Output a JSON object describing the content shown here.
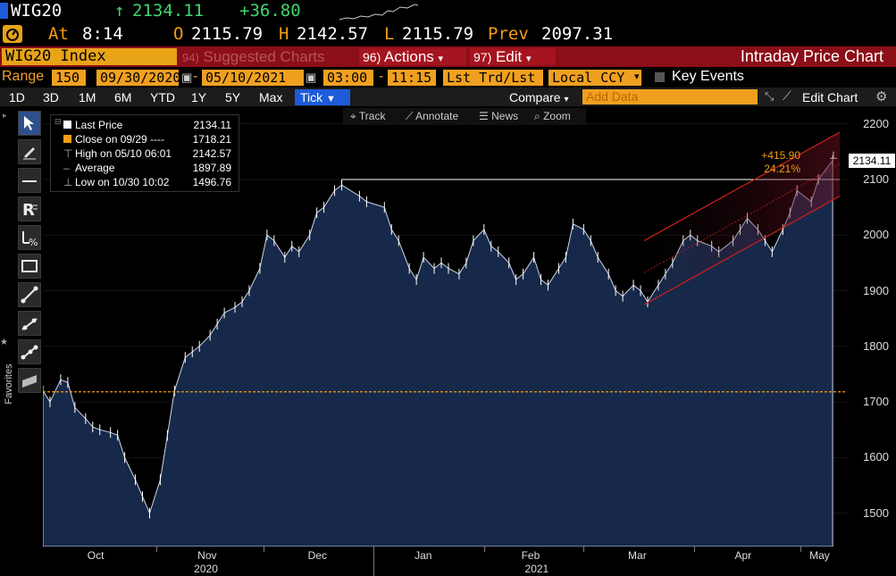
{
  "colors": {
    "accent": "#f39c12",
    "red_bar": "#8b0e18",
    "green": "#41d66e",
    "selected": "#1d5bd8",
    "area": "#17294a",
    "channel": "#d0201a"
  },
  "header": {
    "ticker": "WIG20",
    "last_price": "2134.11",
    "change": "+36.80",
    "at_label": "At",
    "time": "8:14",
    "open_label": "O",
    "open": "2115.79",
    "high_label": "H",
    "high": "2142.57",
    "low_label": "L",
    "low": "2115.79",
    "prev_label": "Prev",
    "prev": "2097.31"
  },
  "menu_bar": {
    "security": "WIG20 Index",
    "suggested_num": "94)",
    "suggested": "Suggested Charts",
    "actions_num": "96)",
    "actions": "Actions",
    "edit_num": "97)",
    "edit": "Edit",
    "chart_title": "Intraday Price Chart"
  },
  "range_bar": {
    "range_label": "Range",
    "bars": "150",
    "start_date": "09/30/2020",
    "end_date": "05/10/2021",
    "start_time": "03:00",
    "end_time": "11:15",
    "field": "Lst Trd/Lst P",
    "currency": "Local CCY",
    "key_events": "Key Events"
  },
  "period_bar": {
    "periods": [
      "1D",
      "3D",
      "1M",
      "6M",
      "YTD",
      "1Y",
      "5Y",
      "Max"
    ],
    "selected": "Tick",
    "compare": "Compare",
    "add_data_placeholder": "Add Data",
    "edit_chart": "Edit Chart"
  },
  "chart_tools": {
    "track": "Track",
    "annotate": "Annotate",
    "news": "News",
    "zoom": "Zoom"
  },
  "favorites_label": "Favorites",
  "legend": {
    "last_price_label": "Last Price",
    "last_price": "2134.11",
    "close_label": "Close on 09/29 ----",
    "close": "1718.21",
    "high_label": "High on 05/10 06:01",
    "high": "2142.57",
    "average_label": "Average",
    "average": "1897.89",
    "low_label": "Low on 10/30 10:02",
    "low": "1496.76"
  },
  "annotations": {
    "last_tag": "2134.11",
    "change_abs": "+415.90",
    "change_pct": "24.21%"
  },
  "chart_data": {
    "type": "area",
    "title": "",
    "y_ticks": [
      1500,
      1600,
      1700,
      1800,
      1900,
      2000,
      2100,
      2200
    ],
    "ylim": [
      1440,
      2230
    ],
    "x_month_labels": [
      "Oct",
      "Nov",
      "Dec",
      "Jan",
      "Feb",
      "Mar",
      "Apr",
      "May"
    ],
    "x_year_labels": [
      "2020",
      "2021"
    ],
    "reference_line_close": 1718.21,
    "resistance_line": 2100,
    "series": [
      {
        "x": [
          "2020-09-30",
          "2020-10-02",
          "2020-10-05",
          "2020-10-07",
          "2020-10-09",
          "2020-10-12",
          "2020-10-14",
          "2020-10-16",
          "2020-10-19",
          "2020-10-21",
          "2020-10-23",
          "2020-10-26",
          "2020-10-28",
          "2020-10-30",
          "2020-11-02",
          "2020-11-04",
          "2020-11-06",
          "2020-11-09",
          "2020-11-11",
          "2020-11-13",
          "2020-11-16",
          "2020-11-18",
          "2020-11-20",
          "2020-11-23",
          "2020-11-25",
          "2020-11-27",
          "2020-11-30",
          "2020-12-02",
          "2020-12-04",
          "2020-12-07",
          "2020-12-09",
          "2020-12-11",
          "2020-12-14",
          "2020-12-16",
          "2020-12-18",
          "2020-12-21",
          "2020-12-23",
          "2020-12-28",
          "2020-12-30",
          "2021-01-04",
          "2021-01-06",
          "2021-01-08",
          "2021-01-11",
          "2021-01-13",
          "2021-01-15",
          "2021-01-18",
          "2021-01-20",
          "2021-01-22",
          "2021-01-25",
          "2021-01-27",
          "2021-01-29",
          "2021-02-01",
          "2021-02-03",
          "2021-02-05",
          "2021-02-08",
          "2021-02-10",
          "2021-02-12",
          "2021-02-15",
          "2021-02-17",
          "2021-02-19",
          "2021-02-22",
          "2021-02-24",
          "2021-02-26",
          "2021-03-01",
          "2021-03-03",
          "2021-03-05",
          "2021-03-08",
          "2021-03-10",
          "2021-03-12",
          "2021-03-15",
          "2021-03-17",
          "2021-03-19",
          "2021-03-22",
          "2021-03-24",
          "2021-03-26",
          "2021-03-29",
          "2021-03-31",
          "2021-04-02",
          "2021-04-06",
          "2021-04-08",
          "2021-04-12",
          "2021-04-14",
          "2021-04-16",
          "2021-04-19",
          "2021-04-21",
          "2021-04-23",
          "2021-04-26",
          "2021-04-28",
          "2021-04-30",
          "2021-05-04",
          "2021-05-06",
          "2021-05-10"
        ],
        "y": [
          1720,
          1700,
          1740,
          1735,
          1690,
          1670,
          1655,
          1650,
          1645,
          1640,
          1600,
          1560,
          1530,
          1500,
          1560,
          1640,
          1720,
          1780,
          1790,
          1800,
          1820,
          1840,
          1860,
          1870,
          1880,
          1900,
          1940,
          2000,
          1990,
          1960,
          1980,
          1970,
          2000,
          2040,
          2050,
          2080,
          2090,
          2070,
          2060,
          2050,
          2010,
          1990,
          1940,
          1920,
          1960,
          1940,
          1950,
          1940,
          1930,
          1950,
          1990,
          2010,
          1980,
          1970,
          1950,
          1920,
          1930,
          1960,
          1920,
          1910,
          1940,
          1960,
          2020,
          2010,
          1990,
          1960,
          1930,
          1900,
          1890,
          1910,
          1900,
          1880,
          1910,
          1930,
          1950,
          1990,
          2000,
          1990,
          1980,
          1970,
          1990,
          2010,
          2030,
          2010,
          1990,
          1970,
          2010,
          2040,
          2080,
          2060,
          2100,
          2134.11
        ]
      }
    ],
    "channel": {
      "lower": [
        [
          "2021-03-18",
          1875
        ],
        [
          "2021-05-12",
          2070
        ]
      ],
      "upper": [
        [
          "2021-03-18",
          1990
        ],
        [
          "2021-05-12",
          2185
        ]
      ]
    }
  }
}
